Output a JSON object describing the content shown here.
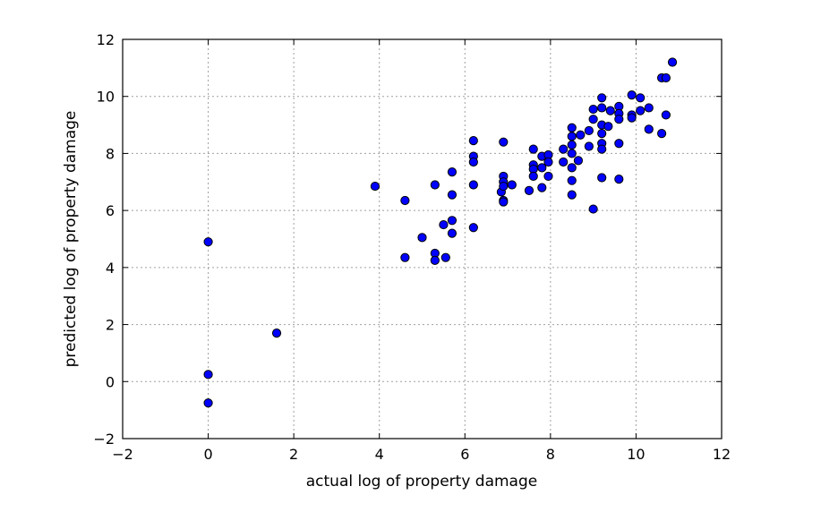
{
  "chart_data": {
    "type": "scatter",
    "title": "",
    "xlabel": "actual log of property damage",
    "ylabel": "predicted log of property damage",
    "xlim": [
      -2,
      12
    ],
    "ylim": [
      -2,
      12
    ],
    "xticks": [
      -2,
      0,
      2,
      4,
      6,
      8,
      10,
      12
    ],
    "yticks": [
      -2,
      0,
      2,
      4,
      6,
      8,
      10,
      12
    ],
    "grid": true,
    "legend": "none",
    "marker_color": "#0000ff",
    "marker_edge_color": "#000000",
    "points": [
      [
        0.0,
        4.9
      ],
      [
        0.0,
        0.25
      ],
      [
        0.0,
        -0.75
      ],
      [
        1.6,
        1.7
      ],
      [
        3.9,
        6.85
      ],
      [
        4.6,
        6.35
      ],
      [
        4.6,
        4.35
      ],
      [
        5.0,
        5.05
      ],
      [
        5.3,
        6.9
      ],
      [
        5.3,
        4.5
      ],
      [
        5.3,
        4.25
      ],
      [
        5.5,
        5.5
      ],
      [
        5.55,
        4.35
      ],
      [
        5.7,
        7.35
      ],
      [
        5.7,
        6.55
      ],
      [
        5.7,
        5.65
      ],
      [
        5.7,
        5.2
      ],
      [
        6.2,
        8.45
      ],
      [
        6.2,
        7.9
      ],
      [
        6.2,
        7.7
      ],
      [
        6.2,
        6.9
      ],
      [
        6.2,
        5.4
      ],
      [
        6.85,
        6.65
      ],
      [
        6.9,
        8.4
      ],
      [
        6.9,
        7.2
      ],
      [
        6.9,
        7.0
      ],
      [
        6.9,
        6.85
      ],
      [
        6.9,
        6.35
      ],
      [
        6.9,
        6.3
      ],
      [
        7.1,
        6.9
      ],
      [
        7.5,
        6.7
      ],
      [
        7.6,
        8.15
      ],
      [
        7.6,
        7.6
      ],
      [
        7.6,
        7.45
      ],
      [
        7.6,
        7.2
      ],
      [
        7.8,
        7.9
      ],
      [
        7.8,
        7.5
      ],
      [
        7.8,
        6.8
      ],
      [
        7.95,
        7.95
      ],
      [
        7.95,
        7.7
      ],
      [
        7.95,
        7.2
      ],
      [
        8.3,
        8.15
      ],
      [
        8.3,
        7.7
      ],
      [
        8.5,
        8.9
      ],
      [
        8.5,
        8.6
      ],
      [
        8.5,
        8.3
      ],
      [
        8.5,
        8.0
      ],
      [
        8.5,
        7.5
      ],
      [
        8.5,
        7.05
      ],
      [
        8.5,
        6.55
      ],
      [
        8.65,
        7.75
      ],
      [
        8.7,
        8.65
      ],
      [
        8.9,
        8.8
      ],
      [
        8.9,
        8.25
      ],
      [
        9.0,
        9.55
      ],
      [
        9.0,
        9.2
      ],
      [
        9.0,
        6.05
      ],
      [
        9.2,
        9.95
      ],
      [
        9.2,
        9.6
      ],
      [
        9.2,
        9.0
      ],
      [
        9.2,
        8.7
      ],
      [
        9.2,
        8.35
      ],
      [
        9.2,
        8.15
      ],
      [
        9.2,
        7.15
      ],
      [
        9.35,
        8.95
      ],
      [
        9.4,
        9.5
      ],
      [
        9.6,
        9.65
      ],
      [
        9.6,
        9.4
      ],
      [
        9.6,
        9.2
      ],
      [
        9.6,
        8.35
      ],
      [
        9.6,
        7.1
      ],
      [
        9.9,
        10.05
      ],
      [
        9.9,
        9.35
      ],
      [
        9.9,
        9.25
      ],
      [
        10.1,
        9.95
      ],
      [
        10.1,
        9.5
      ],
      [
        10.3,
        9.6
      ],
      [
        10.3,
        8.85
      ],
      [
        10.6,
        10.65
      ],
      [
        10.6,
        8.7
      ],
      [
        10.7,
        10.65
      ],
      [
        10.7,
        9.35
      ],
      [
        10.85,
        11.2
      ]
    ]
  }
}
